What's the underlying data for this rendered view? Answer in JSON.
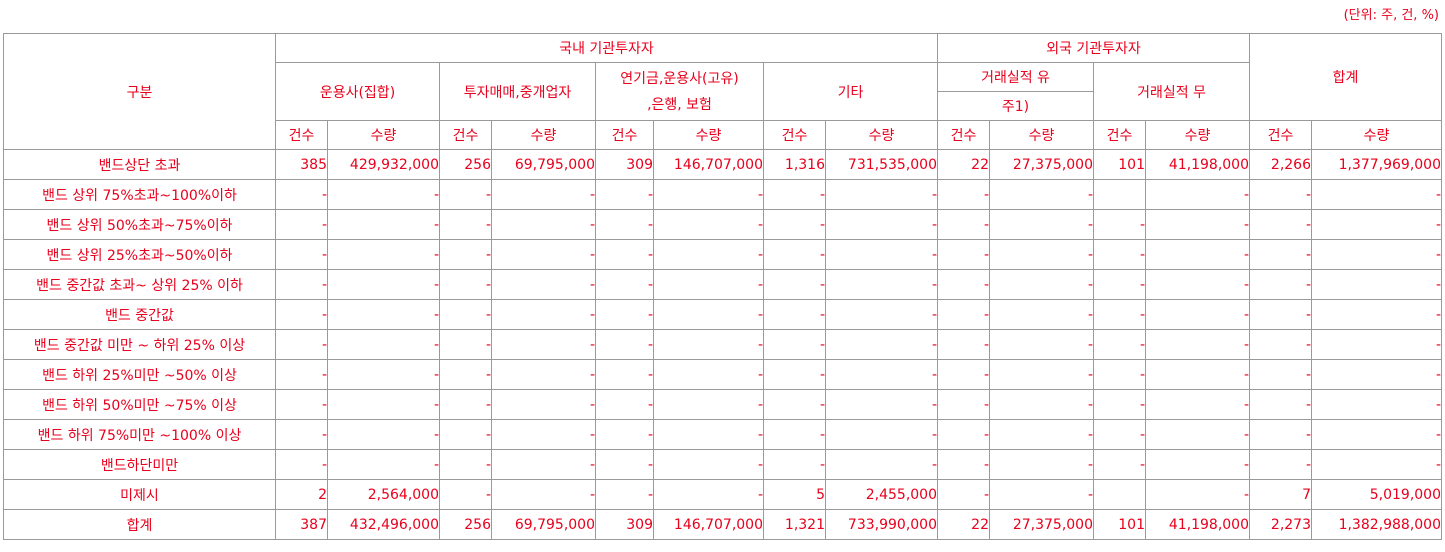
{
  "unit_note": "(단위: 주, 건, %)",
  "header": {
    "category": "구분",
    "domestic": "국내 기관투자자",
    "foreign": "외국 기관투자자",
    "total": "합계",
    "asset_mgmt": "운용사(집합)",
    "broker": "투자매매,중개업자",
    "pension_line1": "연기금,운용사(고유)",
    "pension_line2": ",은행, 보험",
    "other": "기타",
    "record_yes_line1": "거래실적 유",
    "record_yes_line2": "주1)",
    "record_no": "거래실적 무",
    "count": "건수",
    "qty": "수량"
  },
  "rows": [
    {
      "label": "밴드상단 초과",
      "cells": [
        "385",
        "429,932,000",
        "256",
        "69,795,000",
        "309",
        "146,707,000",
        "1,316",
        "731,535,000",
        "22",
        "27,375,000",
        "101",
        "41,198,000",
        "2,266",
        "1,377,969,000"
      ]
    },
    {
      "label": "밴드 상위 75%초과~100%이하",
      "cells": [
        "-",
        "-",
        "-",
        "-",
        "-",
        "-",
        "-",
        "-",
        "-",
        "-",
        "",
        "-",
        "-",
        "-"
      ]
    },
    {
      "label": "밴드 상위 50%초과~75%이하",
      "cells": [
        "-",
        "-",
        "-",
        "-",
        "-",
        "-",
        "-",
        "-",
        "-",
        "-",
        "-",
        "-",
        "-",
        "-"
      ]
    },
    {
      "label": "밴드 상위 25%초과~50%이하",
      "cells": [
        "-",
        "-",
        "-",
        "-",
        "-",
        "-",
        "-",
        "-",
        "-",
        "-",
        "-",
        "-",
        "-",
        "-"
      ]
    },
    {
      "label": "밴드 중간값 초과~ 상위 25% 이하",
      "cells": [
        "-",
        "-",
        "-",
        "-",
        "-",
        "-",
        "-",
        "-",
        "-",
        "-",
        "-",
        "-",
        "-",
        "-"
      ]
    },
    {
      "label": "밴드 중간값",
      "cells": [
        "-",
        "-",
        "-",
        "-",
        "-",
        "-",
        "-",
        "-",
        "-",
        "-",
        "-",
        "-",
        "-",
        "-"
      ]
    },
    {
      "label": "밴드 중간값 미만 ~ 하위 25% 이상",
      "cells": [
        "-",
        "-",
        "-",
        "-",
        "-",
        "-",
        "-",
        "-",
        "-",
        "-",
        "-",
        "-",
        "-",
        "-"
      ]
    },
    {
      "label": "밴드 하위 25%미만 ~50% 이상",
      "cells": [
        "-",
        "-",
        "-",
        "-",
        "-",
        "-",
        "-",
        "-",
        "-",
        "-",
        "-",
        "-",
        "-",
        "-"
      ]
    },
    {
      "label": "밴드 하위 50%미만 ~75% 이상",
      "cells": [
        "-",
        "-",
        "-",
        "-",
        "-",
        "-",
        "-",
        "-",
        "-",
        "-",
        "-",
        "-",
        "-",
        "-"
      ]
    },
    {
      "label": "밴드 하위 75%미만 ~100% 이상",
      "cells": [
        "-",
        "-",
        "-",
        "-",
        "-",
        "-",
        "-",
        "-",
        "-",
        "-",
        "-",
        "-",
        "-",
        "-"
      ]
    },
    {
      "label": "밴드하단미만",
      "cells": [
        "-",
        "-",
        "-",
        "-",
        "-",
        "-",
        "-",
        "-",
        "-",
        "-",
        "-",
        "-",
        "-",
        "-"
      ]
    },
    {
      "label": "미제시",
      "cells": [
        "2",
        "2,564,000",
        "-",
        "-",
        "-",
        "-",
        "5",
        "2,455,000",
        "-",
        "-",
        "",
        "-",
        "7",
        "5,019,000"
      ]
    },
    {
      "label": "합계",
      "cells": [
        "387",
        "432,496,000",
        "256",
        "69,795,000",
        "309",
        "146,707,000",
        "1,321",
        "733,990,000",
        "22",
        "27,375,000",
        "101",
        "41,198,000",
        "2,273",
        "1,382,988,000"
      ]
    }
  ]
}
